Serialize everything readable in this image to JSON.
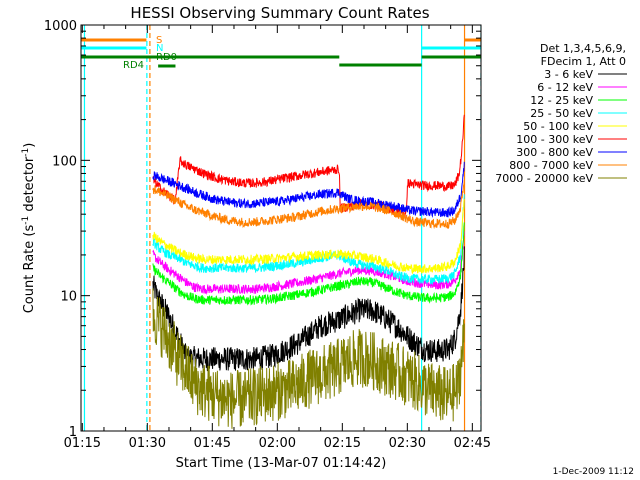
{
  "chart_data": {
    "type": "line",
    "title": "HESSI Observing Summary Count Rates",
    "xlabel": "Start Time (13-Mar-07 01:14:42)",
    "ylabel_main": "Count Rate (s",
    "ylabel_sup1": "-1",
    "ylabel_mid": " detector",
    "ylabel_sup2": "-1",
    "ylabel_end": ")",
    "yscale": "log",
    "xlim_minutes": [
      74.7,
      167.0
    ],
    "ylim": [
      1,
      1000
    ],
    "x_ticks": [
      {
        "m": 75,
        "label": "01:15"
      },
      {
        "m": 90,
        "label": "01:30"
      },
      {
        "m": 105,
        "label": "01:45"
      },
      {
        "m": 120,
        "label": "02:00"
      },
      {
        "m": 135,
        "label": "02:15"
      },
      {
        "m": 150,
        "label": "02:30"
      },
      {
        "m": 165,
        "label": "02:45"
      }
    ],
    "y_ticks": [
      {
        "v": 1,
        "label": "1"
      },
      {
        "v": 10,
        "label": "10"
      },
      {
        "v": 100,
        "label": "100"
      },
      {
        "v": 1000,
        "label": "1000"
      }
    ],
    "legend_header": [
      "Det 1,3,4,5,6,9,",
      "FDecim 1, Att 0"
    ],
    "series": [
      {
        "name": "3 - 6 keV",
        "color": "#000000",
        "points": [
          [
            91.3,
            12
          ],
          [
            92.5,
            9.5
          ],
          [
            93.5,
            8.5
          ],
          [
            95,
            7
          ],
          [
            97,
            5
          ],
          [
            99,
            3.5
          ],
          [
            103,
            3.4
          ],
          [
            115,
            3.4
          ],
          [
            119,
            3.6
          ],
          [
            125,
            4.5
          ],
          [
            130,
            6
          ],
          [
            134,
            6.6
          ],
          [
            136.5,
            7.2
          ],
          [
            139,
            7.8
          ],
          [
            142,
            7.8
          ],
          [
            145,
            6.8
          ],
          [
            148,
            5.8
          ],
          [
            150,
            5
          ],
          [
            152,
            4.4
          ],
          [
            154,
            4
          ],
          [
            157,
            3.9
          ],
          [
            159.5,
            4
          ],
          [
            161,
            4.8
          ],
          [
            162.3,
            8
          ],
          [
            163.2,
            20
          ]
        ]
      },
      {
        "name": "6 - 12 keV",
        "color": "#ff00ff",
        "points": [
          [
            91.3,
            20
          ],
          [
            93,
            17.5
          ],
          [
            95,
            15.5
          ],
          [
            97,
            14
          ],
          [
            99,
            12.5
          ],
          [
            101,
            11.5
          ],
          [
            103,
            11.2
          ],
          [
            115,
            11.2
          ],
          [
            119,
            11.6
          ],
          [
            125,
            12.5
          ],
          [
            130,
            13.5
          ],
          [
            134,
            14.5
          ],
          [
            136.5,
            15
          ],
          [
            139,
            15.5
          ],
          [
            142,
            15.3
          ],
          [
            145,
            14.5
          ],
          [
            148,
            13.5
          ],
          [
            150,
            12.8
          ],
          [
            152,
            12.5
          ],
          [
            154,
            12.2
          ],
          [
            157,
            12
          ],
          [
            159.5,
            12.2
          ],
          [
            161,
            13
          ],
          [
            162.3,
            16
          ],
          [
            163.2,
            30
          ]
        ]
      },
      {
        "name": "12 - 25 keV",
        "color": "#00ff00",
        "points": [
          [
            91.3,
            16
          ],
          [
            93,
            14
          ],
          [
            95,
            12.5
          ],
          [
            97,
            11
          ],
          [
            99,
            10
          ],
          [
            101,
            9.5
          ],
          [
            103,
            9.3
          ],
          [
            115,
            9.3
          ],
          [
            119,
            9.5
          ],
          [
            125,
            10.2
          ],
          [
            130,
            11
          ],
          [
            134,
            11.8
          ],
          [
            136.5,
            12.2
          ],
          [
            139,
            12.8
          ],
          [
            142,
            12.5
          ],
          [
            145,
            11.5
          ],
          [
            148,
            10.5
          ],
          [
            150,
            10
          ],
          [
            152,
            9.8
          ],
          [
            154,
            9.6
          ],
          [
            157,
            9.6
          ],
          [
            159.5,
            9.8
          ],
          [
            161,
            10.5
          ],
          [
            162.3,
            14
          ],
          [
            163.2,
            35
          ]
        ]
      },
      {
        "name": "25 - 50 keV",
        "color": "#00ffff",
        "points": [
          [
            91.3,
            25
          ],
          [
            93,
            22
          ],
          [
            95,
            20
          ],
          [
            97,
            19
          ],
          [
            99,
            17.5
          ],
          [
            101,
            16.5
          ],
          [
            103,
            16
          ],
          [
            115,
            16
          ],
          [
            119,
            16.5
          ],
          [
            125,
            17.5
          ],
          [
            130,
            19
          ],
          [
            134,
            20
          ],
          [
            136.5,
            18
          ],
          [
            139,
            17
          ],
          [
            142,
            16.5
          ],
          [
            145,
            15.5
          ],
          [
            148,
            14
          ],
          [
            150,
            13.5
          ],
          [
            152,
            13.3
          ],
          [
            154,
            13.2
          ],
          [
            157,
            13.2
          ],
          [
            159.5,
            13.5
          ],
          [
            161,
            14.5
          ],
          [
            162.3,
            20
          ],
          [
            163.2,
            60
          ]
        ]
      },
      {
        "name": "50 - 100 keV",
        "color": "#ffff00",
        "points": [
          [
            91.3,
            28
          ],
          [
            93,
            25
          ],
          [
            95,
            23
          ],
          [
            97,
            21
          ],
          [
            99,
            20
          ],
          [
            101,
            19
          ],
          [
            103,
            18.5
          ],
          [
            115,
            18.5
          ],
          [
            119,
            18.8
          ],
          [
            125,
            19.5
          ],
          [
            130,
            20
          ],
          [
            134,
            20.3
          ],
          [
            136.5,
            20
          ],
          [
            139,
            19.5
          ],
          [
            142,
            18.8
          ],
          [
            145,
            17.5
          ],
          [
            148,
            16.5
          ],
          [
            150,
            16
          ],
          [
            152,
            15.8
          ],
          [
            154,
            15.8
          ],
          [
            157,
            16
          ],
          [
            159.5,
            16.5
          ],
          [
            161,
            18
          ],
          [
            162.3,
            24
          ],
          [
            163.2,
            55
          ]
        ]
      },
      {
        "name": "100 - 300 keV",
        "color": "#ff0000",
        "points": [
          [
            91.3,
            72
          ],
          [
            92.5,
            65
          ],
          [
            93.5,
            60
          ],
          [
            95,
            55
          ],
          [
            96.5,
            50
          ],
          [
            97.5,
            100
          ],
          [
            99,
            92
          ],
          [
            101,
            86
          ],
          [
            103,
            80
          ],
          [
            106,
            74
          ],
          [
            109,
            70
          ],
          [
            112,
            68
          ],
          [
            115,
            68
          ],
          [
            118,
            70
          ],
          [
            121,
            73
          ],
          [
            124,
            76
          ],
          [
            127,
            79
          ],
          [
            130,
            82
          ],
          [
            133,
            85
          ],
          [
            134.3,
            86
          ],
          [
            134.5,
            44
          ],
          [
            137,
            46
          ],
          [
            139.5,
            48
          ],
          [
            142,
            47
          ],
          [
            144,
            46
          ],
          [
            146,
            44
          ],
          [
            148,
            42
          ],
          [
            149.8,
            40
          ],
          [
            150,
            68
          ],
          [
            152,
            66
          ],
          [
            154,
            65
          ],
          [
            157,
            65
          ],
          [
            159.5,
            64
          ],
          [
            161,
            66
          ],
          [
            162,
            80
          ],
          [
            162.6,
            120
          ],
          [
            163.2,
            220
          ]
        ]
      },
      {
        "name": "300 - 800 keV",
        "color": "#0000ff",
        "points": [
          [
            91.3,
            78
          ],
          [
            93,
            74
          ],
          [
            95,
            70
          ],
          [
            97,
            66
          ],
          [
            99,
            62
          ],
          [
            101,
            58
          ],
          [
            103,
            55
          ],
          [
            106,
            51
          ],
          [
            109,
            49
          ],
          [
            112,
            48
          ],
          [
            115,
            48
          ],
          [
            118,
            49
          ],
          [
            121,
            50
          ],
          [
            124,
            52
          ],
          [
            127,
            54
          ],
          [
            130,
            56
          ],
          [
            134,
            58
          ],
          [
            136.5,
            52
          ],
          [
            139,
            50
          ],
          [
            142,
            49
          ],
          [
            145,
            47
          ],
          [
            148,
            45
          ],
          [
            150,
            43
          ],
          [
            152,
            42
          ],
          [
            154,
            42
          ],
          [
            157,
            41
          ],
          [
            159.5,
            41
          ],
          [
            161,
            43
          ],
          [
            162.3,
            55
          ],
          [
            163.2,
            95
          ]
        ]
      },
      {
        "name": "800 - 7000 keV",
        "color": "#ff8000",
        "points": [
          [
            91.3,
            62
          ],
          [
            93,
            58
          ],
          [
            95,
            54
          ],
          [
            97,
            50
          ],
          [
            99,
            46
          ],
          [
            101,
            43
          ],
          [
            103,
            41
          ],
          [
            106,
            38
          ],
          [
            109,
            36
          ],
          [
            112,
            35
          ],
          [
            115,
            35
          ],
          [
            118,
            36
          ],
          [
            121,
            37
          ],
          [
            124,
            38
          ],
          [
            127,
            40
          ],
          [
            130,
            42
          ],
          [
            134,
            44
          ],
          [
            136.5,
            45
          ],
          [
            139,
            46
          ],
          [
            142,
            45.5
          ],
          [
            145,
            43
          ],
          [
            148,
            40
          ],
          [
            150,
            37
          ],
          [
            152,
            35
          ],
          [
            154,
            34.5
          ],
          [
            157,
            34
          ],
          [
            159.5,
            34
          ],
          [
            161,
            36
          ],
          [
            162.3,
            45
          ],
          [
            163.2,
            75
          ]
        ]
      },
      {
        "name": "7000 - 20000 keV",
        "color": "#808000",
        "points": [
          [
            91.3,
            7.5
          ],
          [
            93,
            6
          ],
          [
            94.5,
            5
          ],
          [
            96,
            4
          ],
          [
            97.5,
            3.2
          ],
          [
            99,
            2.8
          ],
          [
            101,
            2.2
          ],
          [
            103,
            2
          ],
          [
            106,
            1.8
          ],
          [
            109,
            1.7
          ],
          [
            112,
            1.7
          ],
          [
            115,
            1.8
          ],
          [
            118,
            1.9
          ],
          [
            121,
            2
          ],
          [
            124,
            2.1
          ],
          [
            127,
            2.4
          ],
          [
            130,
            2.6
          ],
          [
            133,
            2.8
          ],
          [
            135,
            3.1
          ],
          [
            137,
            3.3
          ],
          [
            139,
            3.5
          ],
          [
            141,
            3.4
          ],
          [
            143,
            3.2
          ],
          [
            145,
            3
          ],
          [
            147,
            2.8
          ],
          [
            149,
            2.6
          ],
          [
            151,
            2.4
          ],
          [
            153,
            2.2
          ],
          [
            155,
            2
          ],
          [
            157,
            1.9
          ],
          [
            159,
            1.8
          ],
          [
            160.5,
            1.9
          ],
          [
            161.5,
            2
          ],
          [
            162.3,
            3
          ],
          [
            163.2,
            5
          ]
        ]
      }
    ],
    "flag_rows": [
      {
        "label": "S",
        "color": "#ff8000",
        "segments": [
          [
            74.7,
            89.8
          ],
          [
            163.2,
            167.0
          ]
        ]
      },
      {
        "label": "N",
        "color": "#00ffff",
        "segments": [
          [
            74.7,
            89.8
          ],
          [
            153.3,
            167.0
          ]
        ]
      },
      {
        "label": "RD0",
        "color": "#008000",
        "segments": [
          [
            74.7,
            134.3
          ],
          [
            153.3,
            167.0
          ]
        ]
      },
      {
        "label": "RD4",
        "color": "#008000",
        "segments": [
          [
            92.5,
            96.5
          ]
        ]
      }
    ],
    "annotation_lines": [
      {
        "m": 75.5,
        "color": "#00ffff",
        "dashed": false
      },
      {
        "m": 89.9,
        "color": "#00ffff",
        "dashed": true
      },
      {
        "m": 90.6,
        "color": "#ff8000",
        "dashed": true
      },
      {
        "m": 153.3,
        "color": "#00ffff",
        "dashed": false
      },
      {
        "m": 163.2,
        "color": "#ff8000",
        "dashed": false
      },
      {
        "m": 167.0,
        "color": "#00ffff",
        "dashed": true
      }
    ],
    "footer": "1-Dec-2009 11:12"
  }
}
